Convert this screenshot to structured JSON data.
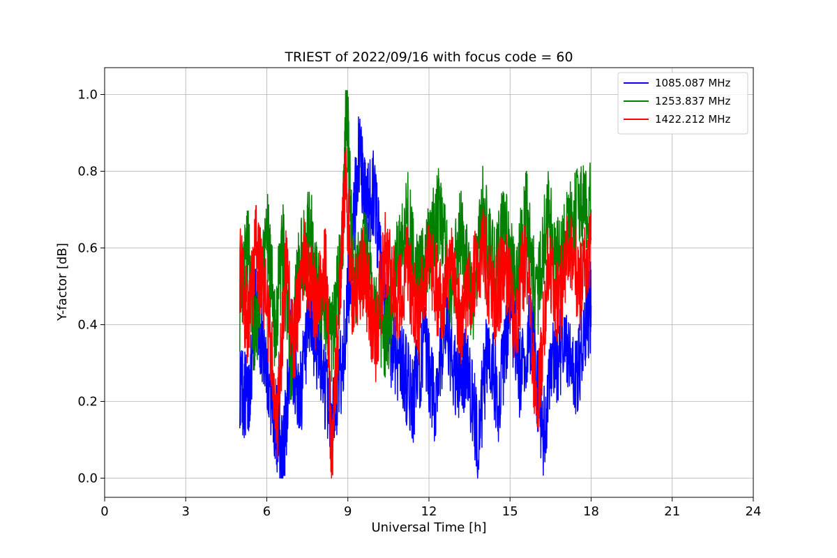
{
  "chart_data": {
    "type": "line",
    "title": "TRIEST of 2022/09/16 with focus code = 60",
    "xlabel": "Universal Time [h]",
    "ylabel": "Y-factor [dB]",
    "xlim": [
      0,
      24
    ],
    "ylim": [
      -0.05,
      1.07
    ],
    "xticks": [
      "0",
      "3",
      "6",
      "9",
      "12",
      "15",
      "18",
      "21",
      "24"
    ],
    "yticks": [
      "0.0",
      "0.2",
      "0.4",
      "0.6",
      "0.8",
      "1.0"
    ],
    "grid": true,
    "legend_position": "top-right",
    "series": [
      {
        "name": "1085.087 MHz",
        "color": "#0000ff",
        "x": [
          5.0,
          5.3,
          5.6,
          6.0,
          6.3,
          6.6,
          6.9,
          7.2,
          7.6,
          8.0,
          8.4,
          8.8,
          9.1,
          9.4,
          9.7,
          10.0,
          10.3,
          10.6,
          11.0,
          11.4,
          11.8,
          12.2,
          12.6,
          13.0,
          13.4,
          13.8,
          14.2,
          14.6,
          15.0,
          15.4,
          15.8,
          16.2,
          16.6,
          17.0,
          17.4,
          17.8,
          18.0
        ],
        "y": [
          0.25,
          0.2,
          0.45,
          0.3,
          0.15,
          0.05,
          0.35,
          0.2,
          0.4,
          0.3,
          0.15,
          0.3,
          0.55,
          0.85,
          0.7,
          0.75,
          0.45,
          0.35,
          0.3,
          0.2,
          0.35,
          0.2,
          0.4,
          0.25,
          0.3,
          0.1,
          0.35,
          0.2,
          0.45,
          0.25,
          0.4,
          0.1,
          0.3,
          0.35,
          0.25,
          0.4,
          0.45
        ]
      },
      {
        "name": "1253.837 MHz",
        "color": "#008000",
        "x": [
          5.0,
          5.3,
          5.6,
          6.0,
          6.3,
          6.6,
          6.9,
          7.2,
          7.6,
          8.0,
          8.4,
          8.8,
          8.95,
          9.2,
          9.6,
          10.0,
          10.4,
          10.8,
          11.2,
          11.6,
          12.0,
          12.4,
          12.8,
          13.2,
          13.6,
          14.0,
          14.4,
          14.8,
          15.2,
          15.6,
          16.0,
          16.4,
          16.8,
          17.2,
          17.6,
          18.0
        ],
        "y": [
          0.45,
          0.6,
          0.35,
          0.65,
          0.4,
          0.6,
          0.3,
          0.55,
          0.65,
          0.45,
          0.35,
          0.6,
          1.0,
          0.5,
          0.6,
          0.45,
          0.35,
          0.55,
          0.7,
          0.5,
          0.6,
          0.7,
          0.5,
          0.65,
          0.45,
          0.7,
          0.55,
          0.65,
          0.5,
          0.7,
          0.45,
          0.7,
          0.55,
          0.65,
          0.72,
          0.7
        ]
      },
      {
        "name": "1422.212 MHz",
        "color": "#ff0000",
        "x": [
          5.0,
          5.3,
          5.6,
          6.0,
          6.4,
          6.7,
          7.0,
          7.4,
          7.8,
          8.2,
          8.4,
          8.7,
          8.9,
          9.2,
          9.6,
          10.0,
          10.4,
          10.8,
          11.2,
          11.6,
          12.0,
          12.4,
          12.8,
          13.2,
          13.6,
          14.0,
          14.4,
          14.8,
          15.2,
          15.6,
          16.0,
          16.4,
          16.8,
          17.2,
          17.6,
          18.0
        ],
        "y": [
          0.55,
          0.4,
          0.6,
          0.45,
          0.15,
          0.55,
          0.35,
          0.6,
          0.45,
          0.55,
          0.02,
          0.5,
          0.8,
          0.45,
          0.55,
          0.35,
          0.6,
          0.45,
          0.55,
          0.4,
          0.6,
          0.45,
          0.55,
          0.4,
          0.5,
          0.6,
          0.45,
          0.55,
          0.4,
          0.6,
          0.15,
          0.55,
          0.45,
          0.6,
          0.5,
          0.62
        ]
      }
    ]
  }
}
